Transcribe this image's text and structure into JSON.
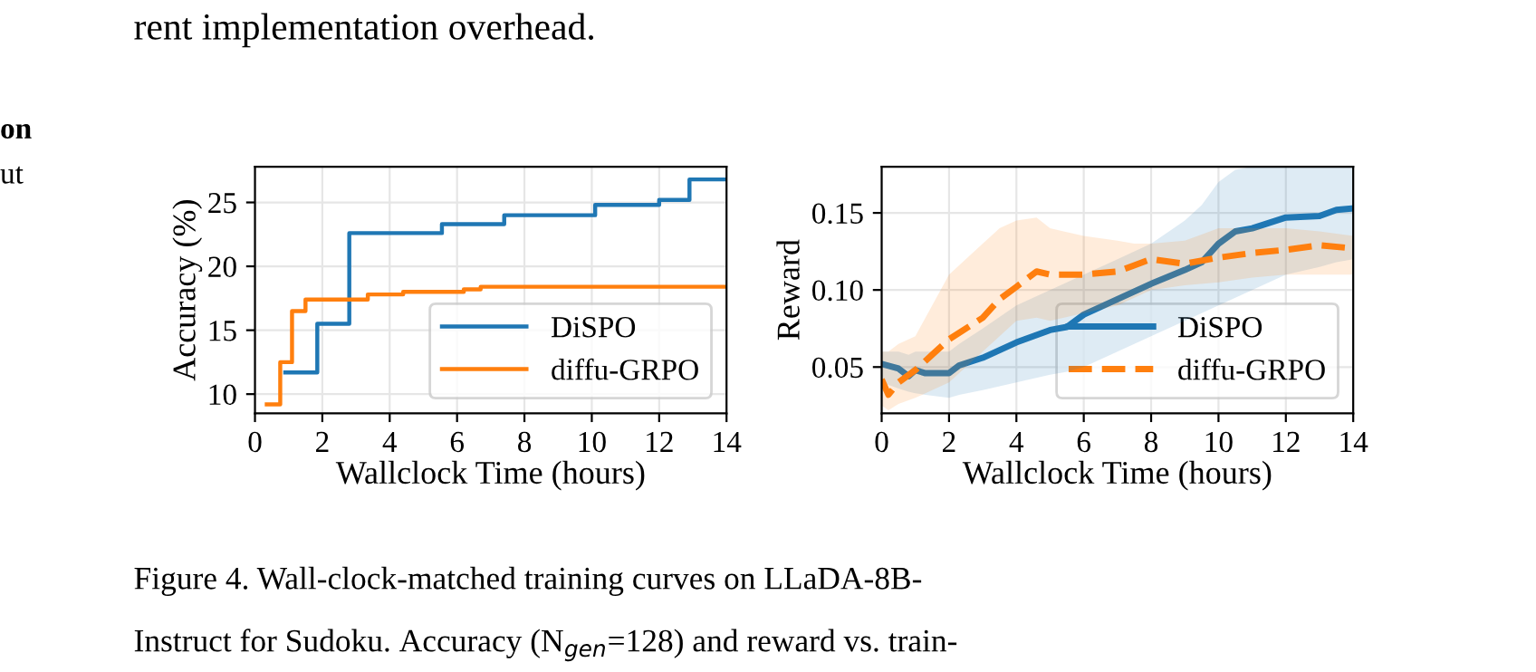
{
  "chart_data": [
    {
      "type": "step",
      "xlabel": "Wallclock Time (hours)",
      "ylabel": "Accuracy (%)",
      "xlim": [
        0,
        14
      ],
      "xticks": [
        0,
        2,
        4,
        6,
        8,
        10,
        12,
        14
      ],
      "ylim": [
        8.5,
        27.8
      ],
      "yticks": [
        10,
        15,
        20,
        25
      ],
      "grid": true,
      "legend": "bottom right",
      "series": [
        {
          "name": "DiSPO",
          "color": "#1f77b4",
          "x": [
            0.9,
            1.85,
            2.8,
            5.55,
            7.4,
            10.1,
            12.0,
            12.9,
            14
          ],
          "values": [
            11.7,
            15.5,
            22.6,
            23.3,
            24.0,
            24.8,
            25.2,
            26.8,
            26.8
          ]
        },
        {
          "name": "diffu-GRPO",
          "color": "#ff7f0e",
          "x": [
            0.35,
            0.75,
            1.1,
            1.5,
            3.35,
            4.4,
            6.2,
            6.7,
            14
          ],
          "values": [
            9.2,
            12.5,
            16.5,
            17.4,
            17.8,
            18.0,
            18.2,
            18.4,
            18.4
          ]
        }
      ],
      "annotations": [
        "rent implementation overhead.",
        "on",
        "ut",
        "Figure 4. Wall-clock-matched training curves on LLaDA-8B-",
        "Instruct for Sudoku. Accuracy (N$_{gen}$=128) and reward vs. train-"
      ]
    },
    {
      "type": "line",
      "xlabel": "Wallclock Time (hours)",
      "ylabel": "Reward",
      "xlim": [
        0,
        14
      ],
      "xticks": [
        0,
        2,
        4,
        6,
        8,
        10,
        12,
        14
      ],
      "ylim": [
        0.02,
        0.18
      ],
      "yticks": [
        {
          "value": 0.05,
          "label": "0.05"
        },
        {
          "value": 0.1,
          "label": "0.10"
        },
        {
          "value": 0.15,
          "label": "0.15"
        }
      ],
      "grid": true,
      "legend": "bottom right",
      "series": [
        {
          "name": "DiSPO",
          "color": "#1f77b4",
          "line_style": "solid",
          "x": [
            0,
            0.5,
            0.8,
            1.0,
            1.3,
            2,
            2.3,
            3,
            4,
            5,
            5.5,
            6,
            7,
            8,
            9,
            9.5,
            10,
            10.5,
            11,
            12,
            13,
            13.5,
            14
          ],
          "values": [
            0.052,
            0.049,
            0.044,
            0.048,
            0.046,
            0.046,
            0.051,
            0.056,
            0.066,
            0.074,
            0.076,
            0.084,
            0.094,
            0.104,
            0.113,
            0.118,
            0.13,
            0.138,
            0.14,
            0.147,
            0.148,
            0.152,
            0.153
          ],
          "lower": [
            0.04,
            0.036,
            0.034,
            0.033,
            0.032,
            0.03,
            0.032,
            0.035,
            0.04,
            0.045,
            0.047,
            0.05,
            0.06,
            0.07,
            0.08,
            0.085,
            0.09,
            0.095,
            0.1,
            0.11,
            0.115,
            0.118,
            0.12
          ],
          "upper": [
            0.06,
            0.06,
            0.058,
            0.06,
            0.06,
            0.06,
            0.065,
            0.075,
            0.09,
            0.1,
            0.105,
            0.11,
            0.12,
            0.13,
            0.145,
            0.155,
            0.17,
            0.178,
            0.18,
            0.18,
            0.18,
            0.18,
            0.18
          ]
        },
        {
          "name": "diffu-GRPO",
          "color": "#ff7f0e",
          "line_style": "dashed",
          "x": [
            0,
            0.2,
            0.5,
            1,
            1.5,
            2,
            3,
            3.5,
            4,
            4.6,
            5,
            6,
            7,
            7.5,
            8,
            9,
            10,
            11,
            12,
            13,
            14
          ],
          "values": [
            0.042,
            0.032,
            0.04,
            0.048,
            0.058,
            0.068,
            0.082,
            0.094,
            0.102,
            0.112,
            0.11,
            0.11,
            0.112,
            0.116,
            0.12,
            0.117,
            0.121,
            0.124,
            0.126,
            0.129,
            0.127
          ],
          "lower": [
            0.025,
            0.022,
            0.026,
            0.03,
            0.035,
            0.04,
            0.06,
            0.07,
            0.08,
            0.082,
            0.08,
            0.085,
            0.09,
            0.095,
            0.1,
            0.103,
            0.105,
            0.108,
            0.11,
            0.11,
            0.11
          ],
          "upper": [
            0.06,
            0.06,
            0.065,
            0.07,
            0.09,
            0.11,
            0.13,
            0.14,
            0.145,
            0.147,
            0.14,
            0.135,
            0.132,
            0.13,
            0.13,
            0.132,
            0.14,
            0.14,
            0.14,
            0.138,
            0.135
          ]
        }
      ]
    }
  ]
}
